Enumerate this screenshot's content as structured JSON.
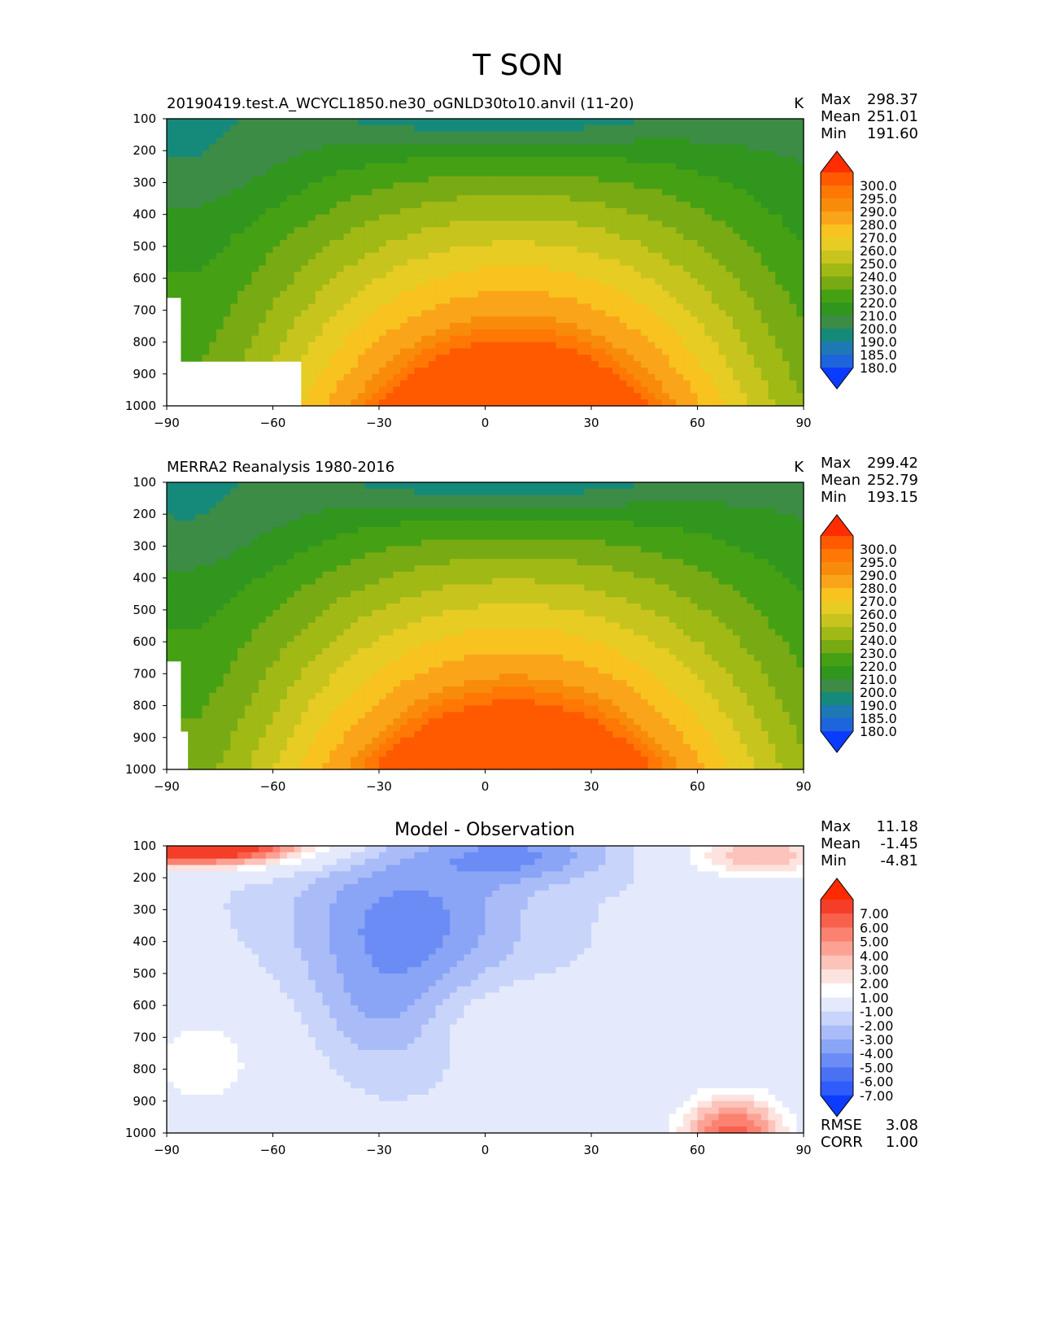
{
  "figure": {
    "title": "T SON"
  },
  "chart_data": [
    {
      "type": "heatmap",
      "panel": "model",
      "title": "20190419.test.A_WCYCL1850.ne30_oGNLD30to10.anvil (11-20)",
      "units": "K",
      "xlabel": "",
      "ylabel": "",
      "xlim": [
        -90,
        90
      ],
      "ylim": [
        1000,
        100
      ],
      "x_ticks": [
        "−90",
        "−60",
        "−30",
        "0",
        "30",
        "60",
        "90"
      ],
      "y_ticks": [
        "100",
        "200",
        "300",
        "400",
        "500",
        "600",
        "700",
        "800",
        "900",
        "1000"
      ],
      "stats": {
        "max_label": "Max",
        "max": "298.37",
        "mean_label": "Mean",
        "mean": "251.01",
        "min_label": "Min",
        "min": "191.60"
      },
      "colorbar": {
        "levels": [
          "180.0",
          "185.0",
          "190.0",
          "200.0",
          "210.0",
          "220.0",
          "230.0",
          "240.0",
          "250.0",
          "260.0",
          "270.0",
          "280.0",
          "290.0",
          "295.0",
          "300.0"
        ],
        "colors": [
          "#0a3cff",
          "#1e64dc",
          "#1e78b4",
          "#168a7a",
          "#3c8c46",
          "#30961e",
          "#46a014",
          "#78aa14",
          "#a0b914",
          "#c8c41e",
          "#e6cc23",
          "#f8c31f",
          "#faa519",
          "#f88c0a",
          "#ff7805",
          "#ff5a00",
          "#ff2d00"
        ]
      }
    },
    {
      "type": "heatmap",
      "panel": "observation",
      "title": "MERRA2 Reanalysis 1980-2016",
      "units": "K",
      "xlabel": "",
      "ylabel": "",
      "xlim": [
        -90,
        90
      ],
      "ylim": [
        1000,
        100
      ],
      "x_ticks": [
        "−90",
        "−60",
        "−30",
        "0",
        "30",
        "60",
        "90"
      ],
      "y_ticks": [
        "100",
        "200",
        "300",
        "400",
        "500",
        "600",
        "700",
        "800",
        "900",
        "1000"
      ],
      "stats": {
        "max_label": "Max",
        "max": "299.42",
        "mean_label": "Mean",
        "mean": "252.79",
        "min_label": "Min",
        "min": "193.15"
      },
      "colorbar": {
        "levels": [
          "180.0",
          "185.0",
          "190.0",
          "200.0",
          "210.0",
          "220.0",
          "230.0",
          "240.0",
          "250.0",
          "260.0",
          "270.0",
          "280.0",
          "290.0",
          "295.0",
          "300.0"
        ],
        "colors": [
          "#0a3cff",
          "#1e64dc",
          "#1e78b4",
          "#168a7a",
          "#3c8c46",
          "#30961e",
          "#46a014",
          "#78aa14",
          "#a0b914",
          "#c8c41e",
          "#e6cc23",
          "#f8c31f",
          "#faa519",
          "#f88c0a",
          "#ff7805",
          "#ff5a00",
          "#ff2d00"
        ]
      }
    },
    {
      "type": "heatmap",
      "panel": "difference",
      "title": "Model - Observation",
      "xlabel": "",
      "ylabel": "",
      "xlim": [
        -90,
        90
      ],
      "ylim": [
        1000,
        100
      ],
      "x_ticks": [
        "−90",
        "−60",
        "−30",
        "0",
        "30",
        "60",
        "90"
      ],
      "y_ticks": [
        "100",
        "200",
        "300",
        "400",
        "500",
        "600",
        "700",
        "800",
        "900",
        "1000"
      ],
      "stats": {
        "max_label": "Max",
        "max": "11.18",
        "mean_label": "Mean",
        "mean": "-1.45",
        "min_label": "Min",
        "min": "-4.81"
      },
      "metrics": {
        "rmse_label": "RMSE",
        "rmse": "3.08",
        "corr_label": "CORR",
        "corr": "1.00"
      },
      "colorbar": {
        "levels": [
          "-7.00",
          "-6.00",
          "-5.00",
          "-4.00",
          "-3.00",
          "-2.00",
          "-1.00",
          "1.00",
          "2.00",
          "3.00",
          "4.00",
          "5.00",
          "6.00",
          "7.00"
        ],
        "colors": [
          "#0c3cff",
          "#2f5cfb",
          "#4a70f4",
          "#6a8cf4",
          "#8aa4f6",
          "#aabcf8",
          "#c8d4fa",
          "#e4eafc",
          "#ffffff",
          "#fde3df",
          "#fcc3ba",
          "#fca294",
          "#fb8270",
          "#f8604d",
          "#f43e28",
          "#ff2a00"
        ]
      }
    }
  ]
}
